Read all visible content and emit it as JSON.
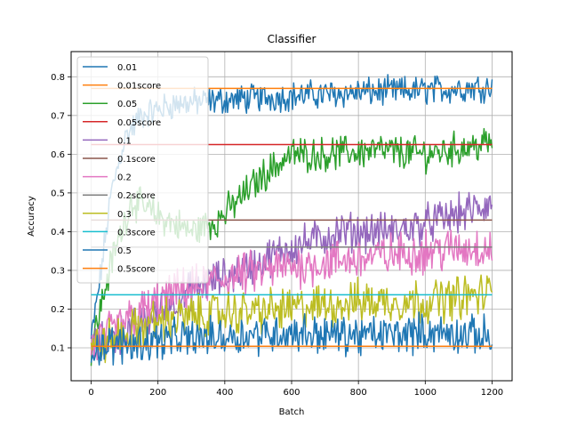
{
  "chart_data": {
    "type": "line",
    "title": "Classifier",
    "xlabel": "Batch",
    "ylabel": "Accuracy",
    "xlim": [
      -60,
      1260
    ],
    "ylim": [
      0.015,
      0.865
    ],
    "xticks": [
      0,
      200,
      400,
      600,
      800,
      1000,
      1200
    ],
    "yticks": [
      0.1,
      0.2,
      0.3,
      0.4,
      0.5,
      0.6,
      0.7,
      0.8
    ],
    "grid": true,
    "legend_position": "upper-left",
    "series": [
      {
        "name": "0.01",
        "color": "#1f77b4",
        "kind": "noisy",
        "noise": 0.03,
        "points": [
          [
            0,
            0.12
          ],
          [
            30,
            0.3
          ],
          [
            60,
            0.5
          ],
          [
            100,
            0.64
          ],
          [
            150,
            0.7
          ],
          [
            250,
            0.73
          ],
          [
            400,
            0.74
          ],
          [
            600,
            0.75
          ],
          [
            800,
            0.76
          ],
          [
            1000,
            0.765
          ],
          [
            1200,
            0.775
          ]
        ]
      },
      {
        "name": "0.01score",
        "color": "#ff7f0e",
        "kind": "flat",
        "points": [
          [
            0,
            0.77
          ],
          [
            1200,
            0.77
          ]
        ]
      },
      {
        "name": "0.05",
        "color": "#2ca02c",
        "kind": "noisy",
        "noise": 0.035,
        "points": [
          [
            0,
            0.1
          ],
          [
            60,
            0.32
          ],
          [
            120,
            0.48
          ],
          [
            200,
            0.44
          ],
          [
            300,
            0.4
          ],
          [
            380,
            0.43
          ],
          [
            450,
            0.49
          ],
          [
            520,
            0.55
          ],
          [
            600,
            0.6
          ],
          [
            700,
            0.6
          ],
          [
            850,
            0.61
          ],
          [
            1000,
            0.6
          ],
          [
            1200,
            0.63
          ]
        ]
      },
      {
        "name": "0.05score",
        "color": "#d62728",
        "kind": "flat",
        "points": [
          [
            0,
            0.625
          ],
          [
            1200,
            0.625
          ]
        ]
      },
      {
        "name": "0.1",
        "color": "#9467bd",
        "kind": "noisy",
        "noise": 0.04,
        "points": [
          [
            0,
            0.1
          ],
          [
            150,
            0.16
          ],
          [
            300,
            0.25
          ],
          [
            450,
            0.3
          ],
          [
            600,
            0.36
          ],
          [
            750,
            0.4
          ],
          [
            900,
            0.4
          ],
          [
            1000,
            0.42
          ],
          [
            1200,
            0.47
          ]
        ]
      },
      {
        "name": "0.1score",
        "color": "#8c564b",
        "kind": "flat",
        "points": [
          [
            0,
            0.43
          ],
          [
            1200,
            0.43
          ]
        ]
      },
      {
        "name": "0.2",
        "color": "#e377c2",
        "kind": "noisy",
        "noise": 0.045,
        "points": [
          [
            0,
            0.1
          ],
          [
            100,
            0.17
          ],
          [
            250,
            0.24
          ],
          [
            400,
            0.28
          ],
          [
            600,
            0.31
          ],
          [
            800,
            0.33
          ],
          [
            1000,
            0.35
          ],
          [
            1200,
            0.36
          ]
        ]
      },
      {
        "name": "0.2score",
        "color": "#7f7f7f",
        "kind": "flat",
        "points": [
          [
            0,
            0.36
          ],
          [
            1200,
            0.36
          ]
        ]
      },
      {
        "name": "0.3",
        "color": "#bcbd22",
        "kind": "noisy",
        "noise": 0.045,
        "points": [
          [
            0,
            0.1
          ],
          [
            200,
            0.17
          ],
          [
            400,
            0.19
          ],
          [
            600,
            0.2
          ],
          [
            800,
            0.22
          ],
          [
            1000,
            0.22
          ],
          [
            1200,
            0.24
          ]
        ]
      },
      {
        "name": "0.3score",
        "color": "#17becf",
        "kind": "flat",
        "points": [
          [
            0,
            0.237
          ],
          [
            1200,
            0.237
          ]
        ]
      },
      {
        "name": "0.5",
        "color": "#1f77b4",
        "kind": "noisy",
        "noise": 0.04,
        "points": [
          [
            0,
            0.1
          ],
          [
            200,
            0.12
          ],
          [
            400,
            0.13
          ],
          [
            600,
            0.14
          ],
          [
            800,
            0.13
          ],
          [
            1000,
            0.14
          ],
          [
            1200,
            0.13
          ]
        ]
      },
      {
        "name": "0.5score",
        "color": "#ff7f0e",
        "kind": "flat",
        "points": [
          [
            0,
            0.104
          ],
          [
            1200,
            0.104
          ]
        ]
      }
    ]
  }
}
